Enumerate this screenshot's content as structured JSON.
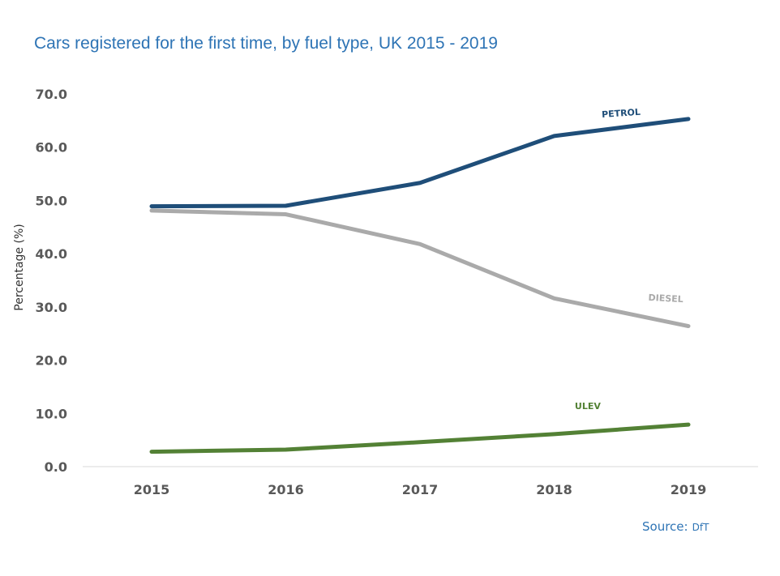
{
  "chart_data": {
    "type": "line",
    "title": "Cars registered for the first time, by fuel type, UK 2015 - 2019",
    "xlabel": "",
    "ylabel": "Percentage (%)",
    "categories": [
      "2015",
      "2016",
      "2017",
      "2018",
      "2019"
    ],
    "yticks": [
      "0.0",
      "10.0",
      "20.0",
      "30.0",
      "40.0",
      "50.0",
      "60.0",
      "70.0"
    ],
    "ylim": [
      0,
      70
    ],
    "grid": false,
    "legend": "none",
    "series": [
      {
        "name": "PETROL",
        "color": "#1f4e79",
        "values": [
          48.9,
          49.0,
          53.3,
          62.1,
          65.3
        ]
      },
      {
        "name": "DIESEL",
        "color": "#aaaaaa",
        "values": [
          48.1,
          47.4,
          41.8,
          31.6,
          26.4
        ]
      },
      {
        "name": "ULEV",
        "color": "#538135",
        "values": [
          2.8,
          3.2,
          4.6,
          6.1,
          7.9
        ]
      }
    ]
  },
  "source": {
    "label": "Source:",
    "value": "DfT"
  }
}
